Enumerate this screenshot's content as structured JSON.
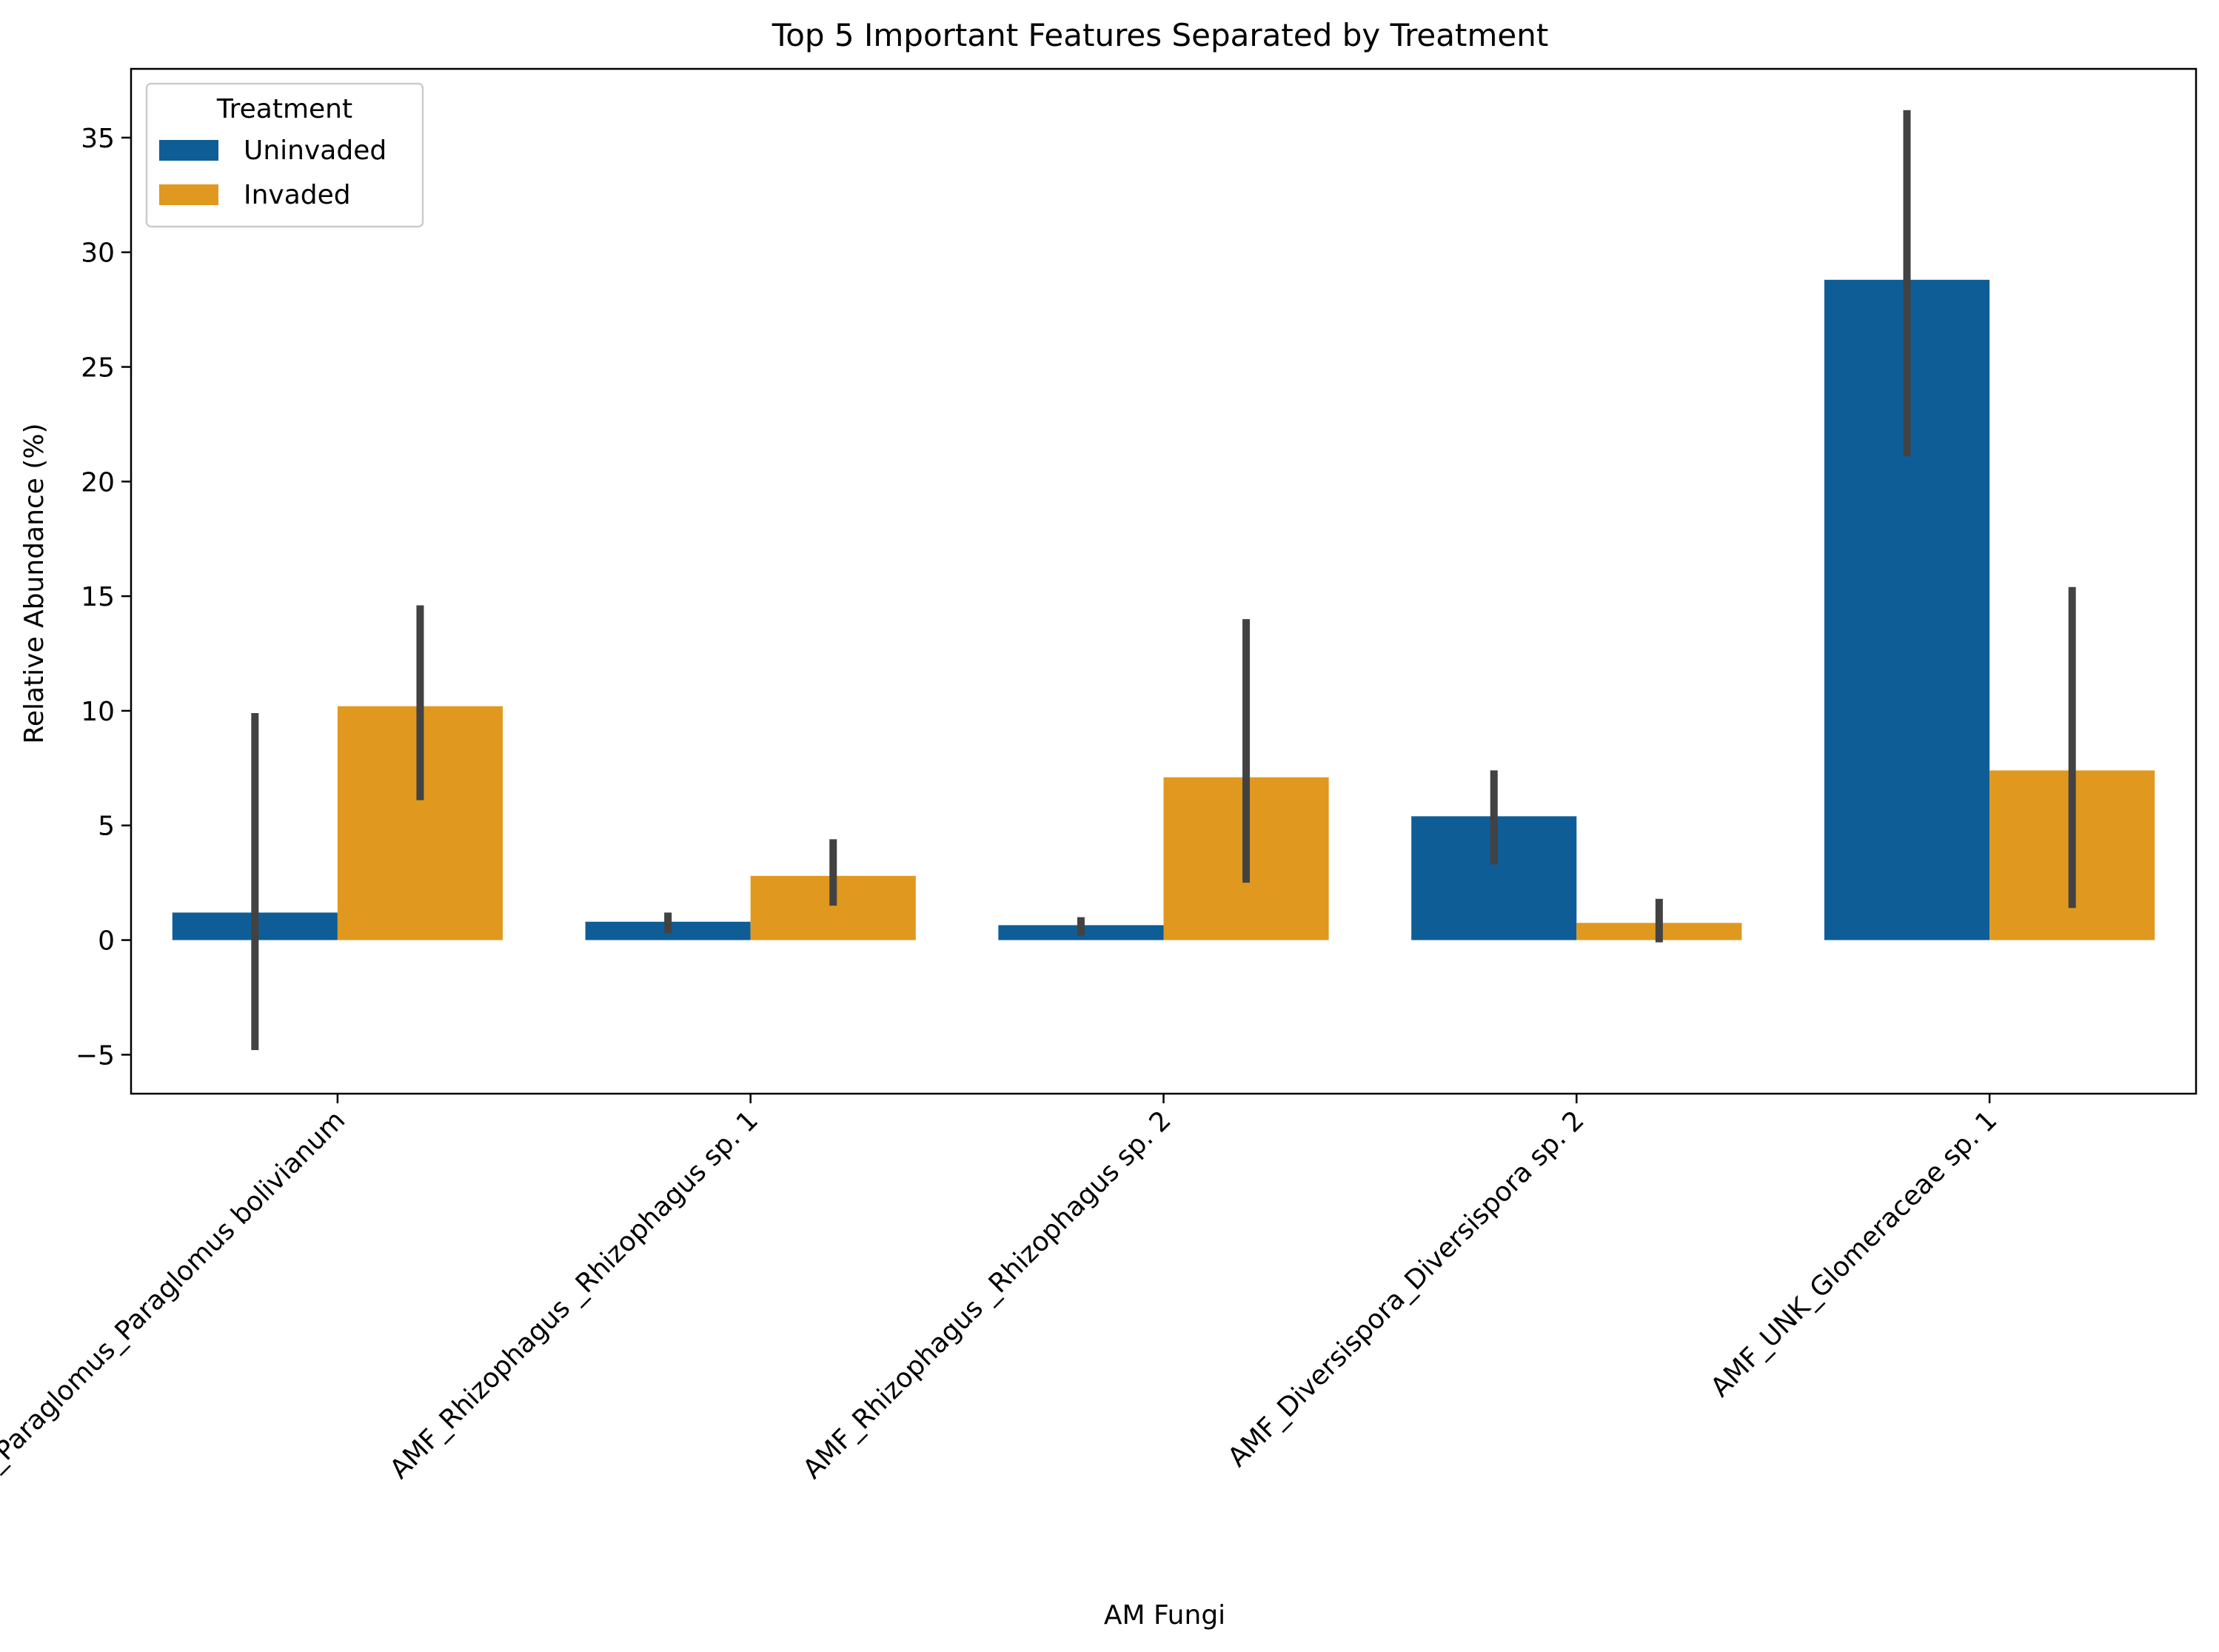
{
  "chart_data": {
    "type": "bar",
    "title": "Top 5 Important Features Separated by Treatment",
    "xlabel": "AM Fungi",
    "ylabel": "Relative Abundance (%)",
    "ylim": [
      -6.7,
      38
    ],
    "yticks": [
      -5,
      0,
      5,
      10,
      15,
      20,
      25,
      30,
      35
    ],
    "grid": false,
    "legend": {
      "title": "Treatment",
      "position": "top-left"
    },
    "categories": [
      "AMF_Paraglomus_Paraglomus bolivianum",
      "AMF_Rhizophagus _Rhizophagus sp. 1",
      "AMF_Rhizophagus _Rhizophagus sp. 2",
      "AMF_Diversispora_Diversispora sp. 2",
      "AMF_UNK_Glomeraceae sp. 1"
    ],
    "series": [
      {
        "name": "Uninvaded",
        "color": "#0f5d96",
        "values": [
          1.2,
          0.8,
          0.65,
          5.4,
          28.8
        ],
        "error_low": [
          -4.8,
          0.3,
          0.2,
          3.3,
          21.1
        ],
        "error_high": [
          9.9,
          1.2,
          1.0,
          7.4,
          36.2
        ]
      },
      {
        "name": "Invaded",
        "color": "#e0991e",
        "values": [
          10.2,
          2.8,
          7.1,
          0.75,
          7.4
        ],
        "error_low": [
          6.1,
          1.5,
          2.5,
          -0.1,
          1.4
        ],
        "error_high": [
          14.6,
          4.4,
          14.0,
          1.8,
          15.4
        ]
      }
    ]
  }
}
